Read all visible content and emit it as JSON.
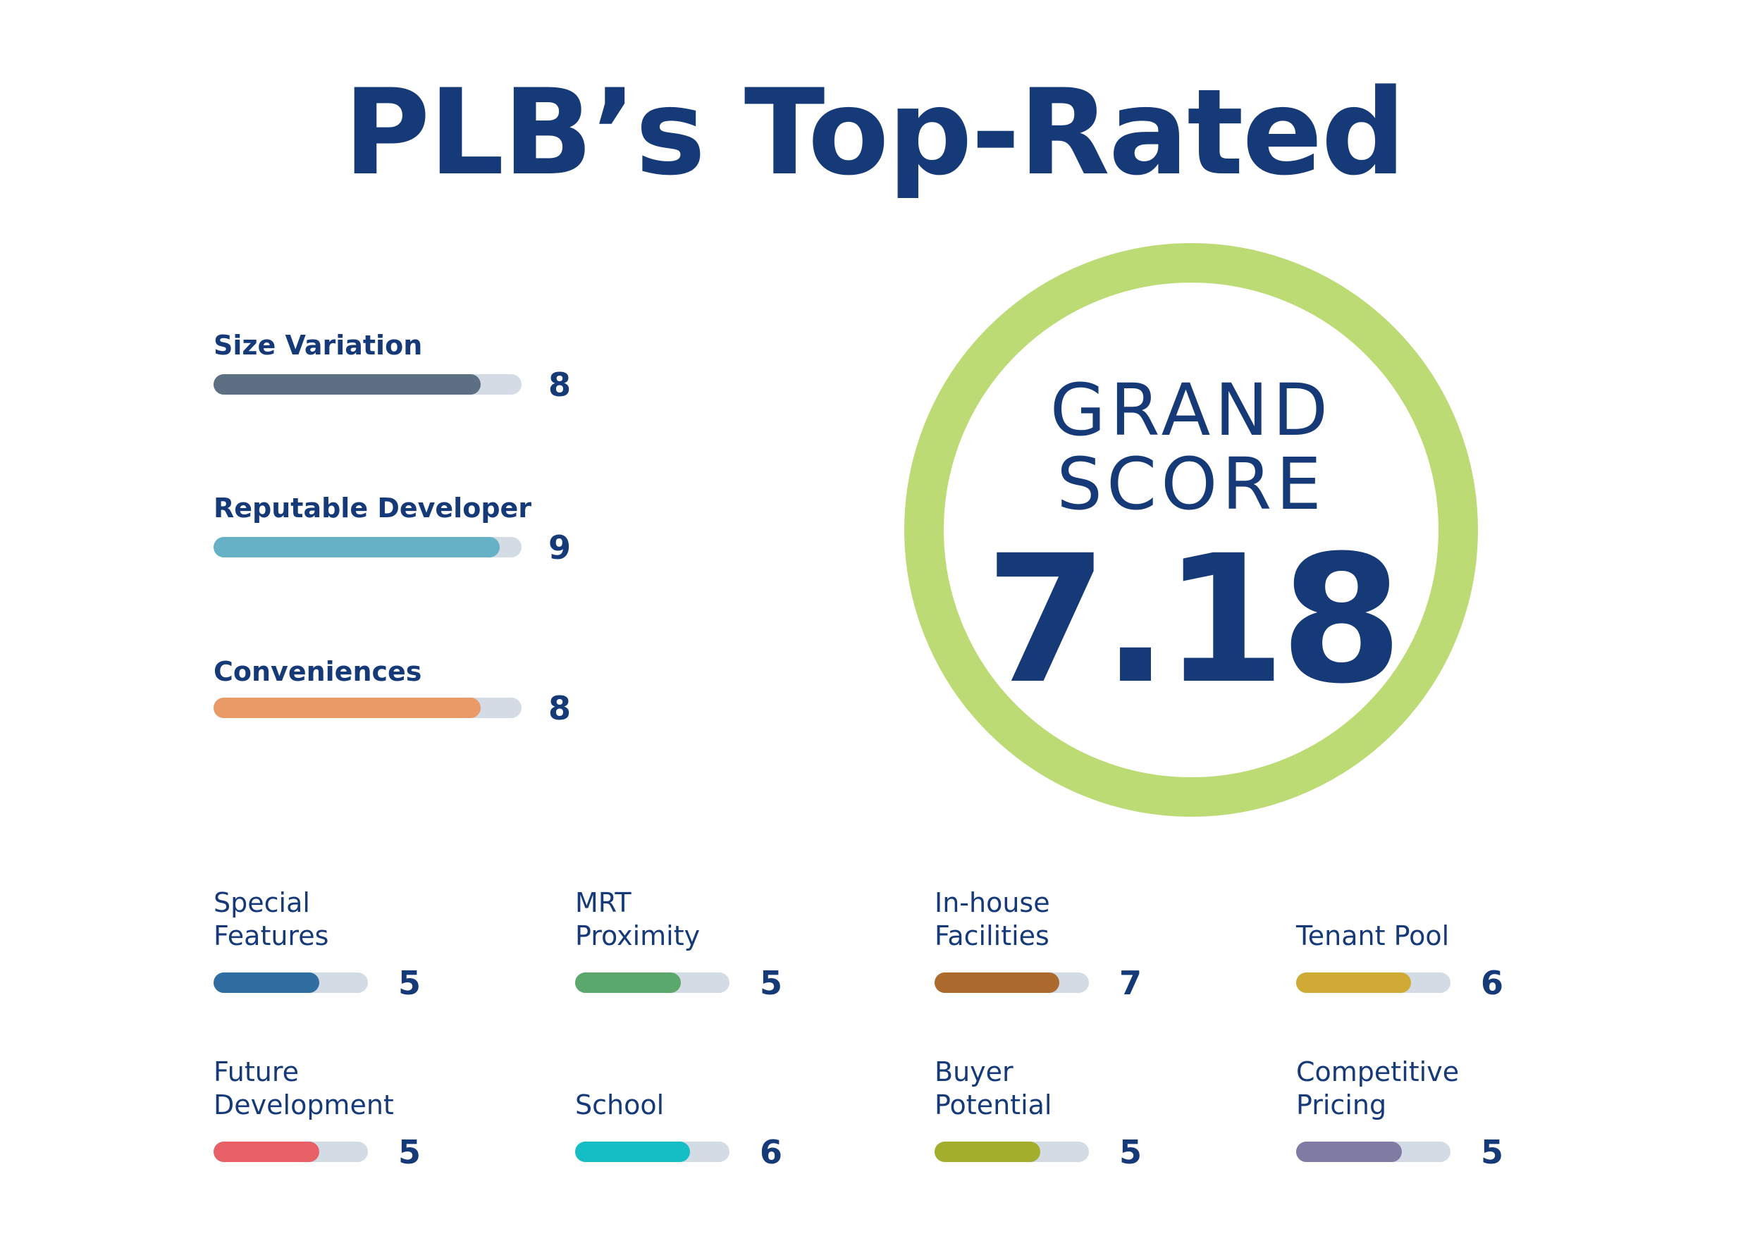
{
  "title": "PLB’s Top-Rated",
  "grand_score": {
    "line1": "GRAND",
    "line2": "SCORE",
    "value": "7.18",
    "ring_color": "#bcdb75"
  },
  "colors": {
    "text": "#163a78",
    "track": "#d3dbe5"
  },
  "main_criteria": [
    {
      "label": "Size Variation",
      "score": 8,
      "color": "#5d6f82"
    },
    {
      "label": "Reputable Developer",
      "score": 9,
      "color": "#67b1c7"
    },
    {
      "label": "Conveniences",
      "score": 8,
      "color": "#e99a66"
    }
  ],
  "sub_criteria": [
    {
      "label": "Special\nFeatures",
      "score": 5,
      "color": "#306ea2"
    },
    {
      "label": "MRT\nProximity",
      "score": 5,
      "color": "#5aa86b"
    },
    {
      "label": "In-house\nFacilities",
      "score": 7,
      "color": "#ad6a2e"
    },
    {
      "label": "Tenant Pool",
      "score": 6,
      "color": "#cfab35"
    },
    {
      "label": "Future\nDevelopment",
      "score": 5,
      "color": "#e86066"
    },
    {
      "label": "School",
      "score": 6,
      "color": "#14bec4"
    },
    {
      "label": "Buyer\nPotential",
      "score": 5,
      "color": "#a2ae2c"
    },
    {
      "label": "Competitive\nPricing",
      "score": 5,
      "color": "#7f7ba2"
    }
  ]
}
